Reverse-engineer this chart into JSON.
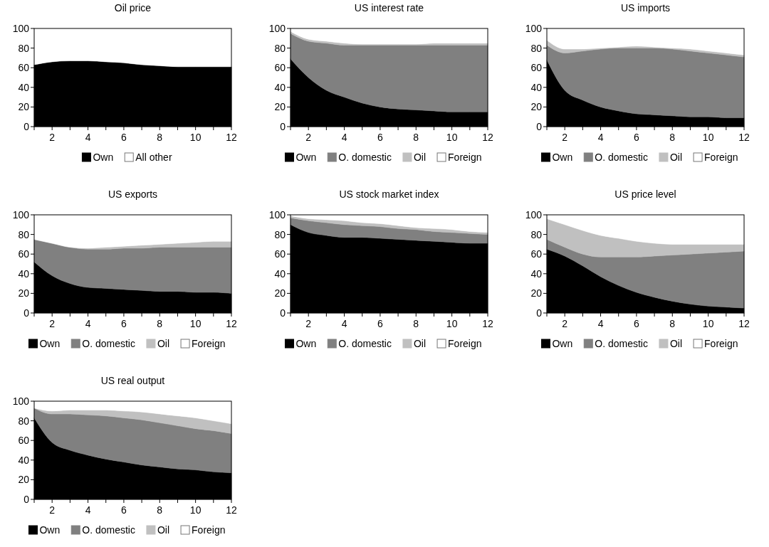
{
  "chart_data": [
    {
      "type": "area",
      "title": "Oil price",
      "stacked": true,
      "legend": "bottom",
      "grid": false,
      "x": [
        1,
        2,
        3,
        4,
        5,
        6,
        7,
        8,
        9,
        10,
        11,
        12
      ],
      "xlim": [
        1,
        12
      ],
      "ylim": [
        0,
        100
      ],
      "xticks": [
        {
          "value": 1,
          "label": null
        },
        2,
        {
          "value": 3,
          "label": null
        },
        4,
        {
          "value": 5,
          "label": null
        },
        6,
        {
          "value": 7,
          "label": null
        },
        8,
        {
          "value": 9,
          "label": null
        },
        10,
        {
          "value": 11,
          "label": null
        },
        12
      ],
      "yticks": [
        0,
        20,
        40,
        60,
        80,
        100
      ],
      "series": [
        {
          "name": "Own",
          "color": "#000000",
          "values": [
            63,
            66,
            67,
            67,
            66,
            65,
            63,
            62,
            61,
            61,
            61,
            61
          ]
        },
        {
          "name": "All other",
          "color": "#ffffff",
          "values": [
            37,
            34,
            33,
            33,
            34,
            35,
            37,
            38,
            39,
            39,
            39,
            39
          ]
        }
      ]
    },
    {
      "type": "area",
      "title": "US interest rate",
      "stacked": true,
      "legend": "bottom",
      "grid": false,
      "x": [
        1,
        2,
        3,
        4,
        5,
        6,
        7,
        8,
        9,
        10,
        11,
        12
      ],
      "xlim": [
        1,
        12
      ],
      "ylim": [
        0,
        100
      ],
      "xticks": [
        {
          "value": 1,
          "label": null
        },
        2,
        {
          "value": 3,
          "label": null
        },
        4,
        {
          "value": 5,
          "label": null
        },
        6,
        {
          "value": 7,
          "label": null
        },
        8,
        {
          "value": 9,
          "label": null
        },
        10,
        {
          "value": 11,
          "label": null
        },
        12
      ],
      "yticks": [
        0,
        20,
        40,
        60,
        80,
        100
      ],
      "series": [
        {
          "name": "Own",
          "color": "#000000",
          "values": [
            69,
            50,
            37,
            30,
            24,
            20,
            18,
            17,
            16,
            15,
            15,
            15
          ]
        },
        {
          "name": "O. domestic",
          "color": "#808080",
          "values": [
            26,
            37,
            48,
            53,
            59,
            63,
            65,
            66,
            67,
            68,
            68,
            68
          ]
        },
        {
          "name": "Oil",
          "color": "#c0c0c0",
          "values": [
            2,
            2,
            2,
            2,
            1,
            1,
            1,
            1,
            2,
            2,
            2,
            2
          ]
        },
        {
          "name": "Foreign",
          "color": "#ffffff",
          "values": [
            3,
            11,
            13,
            15,
            16,
            16,
            16,
            16,
            15,
            15,
            15,
            15
          ]
        }
      ]
    },
    {
      "type": "area",
      "title": "US imports",
      "stacked": true,
      "legend": "bottom",
      "grid": false,
      "x": [
        1,
        2,
        3,
        4,
        5,
        6,
        7,
        8,
        9,
        10,
        11,
        12
      ],
      "xlim": [
        1,
        12
      ],
      "ylim": [
        0,
        100
      ],
      "xticks": [
        {
          "value": 1,
          "label": null
        },
        2,
        {
          "value": 3,
          "label": null
        },
        4,
        {
          "value": 5,
          "label": null
        },
        6,
        {
          "value": 7,
          "label": null
        },
        8,
        {
          "value": 9,
          "label": null
        },
        10,
        {
          "value": 11,
          "label": null
        },
        12
      ],
      "yticks": [
        0,
        20,
        40,
        60,
        80,
        100
      ],
      "series": [
        {
          "name": "Own",
          "color": "#000000",
          "values": [
            68,
            37,
            27,
            20,
            16,
            13,
            12,
            11,
            10,
            10,
            9,
            9
          ]
        },
        {
          "name": "O. domestic",
          "color": "#808080",
          "values": [
            15,
            38,
            50,
            59,
            64,
            67,
            68,
            68,
            67,
            65,
            64,
            62
          ]
        },
        {
          "name": "Oil",
          "color": "#c0c0c0",
          "values": [
            5,
            4,
            2,
            1,
            1,
            2,
            1,
            1,
            2,
            2,
            2,
            2
          ]
        },
        {
          "name": "Foreign",
          "color": "#ffffff",
          "values": [
            12,
            21,
            21,
            20,
            19,
            18,
            19,
            20,
            21,
            23,
            25,
            27
          ]
        }
      ]
    },
    {
      "type": "area",
      "title": "US exports",
      "stacked": true,
      "legend": "bottom",
      "grid": false,
      "x": [
        1,
        2,
        3,
        4,
        5,
        6,
        7,
        8,
        9,
        10,
        11,
        12
      ],
      "xlim": [
        1,
        12
      ],
      "ylim": [
        0,
        100
      ],
      "xticks": [
        {
          "value": 1,
          "label": null
        },
        2,
        {
          "value": 3,
          "label": null
        },
        4,
        {
          "value": 5,
          "label": null
        },
        6,
        {
          "value": 7,
          "label": null
        },
        8,
        {
          "value": 9,
          "label": null
        },
        10,
        {
          "value": 11,
          "label": null
        },
        12
      ],
      "yticks": [
        0,
        20,
        40,
        60,
        80,
        100
      ],
      "series": [
        {
          "name": "Own",
          "color": "#000000",
          "values": [
            52,
            38,
            30,
            26,
            25,
            24,
            23,
            22,
            22,
            21,
            21,
            20
          ]
        },
        {
          "name": "O. domestic",
          "color": "#808080",
          "values": [
            23,
            33,
            37,
            39,
            40,
            42,
            43,
            45,
            45,
            46,
            46,
            47
          ]
        },
        {
          "name": "Oil",
          "color": "#c0c0c0",
          "values": [
            0,
            0,
            0,
            1,
            2,
            2,
            3,
            3,
            4,
            5,
            6,
            6
          ]
        },
        {
          "name": "Foreign",
          "color": "#ffffff",
          "values": [
            25,
            29,
            33,
            34,
            33,
            32,
            31,
            30,
            29,
            28,
            27,
            27
          ]
        }
      ]
    },
    {
      "type": "area",
      "title": "US stock market index",
      "stacked": true,
      "legend": "bottom",
      "grid": false,
      "x": [
        1,
        2,
        3,
        4,
        5,
        6,
        7,
        8,
        9,
        10,
        11,
        12
      ],
      "xlim": [
        1,
        12
      ],
      "ylim": [
        0,
        100
      ],
      "xticks": [
        {
          "value": 1,
          "label": null
        },
        2,
        {
          "value": 3,
          "label": null
        },
        4,
        {
          "value": 5,
          "label": null
        },
        6,
        {
          "value": 7,
          "label": null
        },
        8,
        {
          "value": 9,
          "label": null
        },
        10,
        {
          "value": 11,
          "label": null
        },
        12
      ],
      "yticks": [
        0,
        20,
        40,
        60,
        80,
        100
      ],
      "series": [
        {
          "name": "Own",
          "color": "#000000",
          "values": [
            90,
            82,
            79,
            77,
            77,
            76,
            75,
            74,
            73,
            72,
            71,
            71
          ]
        },
        {
          "name": "O. domestic",
          "color": "#808080",
          "values": [
            7,
            12,
            13,
            13,
            12,
            12,
            11,
            11,
            10,
            10,
            10,
            9
          ]
        },
        {
          "name": "Oil",
          "color": "#c0c0c0",
          "values": [
            2,
            2,
            3,
            4,
            3,
            3,
            3,
            2,
            3,
            3,
            2,
            2
          ]
        },
        {
          "name": "Foreign",
          "color": "#ffffff",
          "values": [
            1,
            4,
            5,
            6,
            8,
            9,
            11,
            13,
            14,
            15,
            17,
            18
          ]
        }
      ]
    },
    {
      "type": "area",
      "title": "US price level",
      "stacked": true,
      "legend": "bottom",
      "grid": false,
      "x": [
        1,
        2,
        3,
        4,
        5,
        6,
        7,
        8,
        9,
        10,
        11,
        12
      ],
      "xlim": [
        1,
        12
      ],
      "ylim": [
        0,
        100
      ],
      "xticks": [
        {
          "value": 1,
          "label": null
        },
        2,
        {
          "value": 3,
          "label": null
        },
        4,
        {
          "value": 5,
          "label": null
        },
        6,
        {
          "value": 7,
          "label": null
        },
        8,
        {
          "value": 9,
          "label": null
        },
        10,
        {
          "value": 11,
          "label": null
        },
        12
      ],
      "yticks": [
        0,
        20,
        40,
        60,
        80,
        100
      ],
      "series": [
        {
          "name": "Own",
          "color": "#000000",
          "values": [
            65,
            58,
            48,
            37,
            28,
            21,
            16,
            12,
            9,
            7,
            6,
            5
          ]
        },
        {
          "name": "O. domestic",
          "color": "#808080",
          "values": [
            10,
            9,
            12,
            20,
            29,
            36,
            42,
            47,
            51,
            54,
            56,
            58
          ]
        },
        {
          "name": "Oil",
          "color": "#c0c0c0",
          "values": [
            21,
            23,
            24,
            22,
            19,
            16,
            13,
            11,
            10,
            9,
            8,
            7
          ]
        },
        {
          "name": "Foreign",
          "color": "#ffffff",
          "values": [
            4,
            10,
            16,
            21,
            24,
            27,
            29,
            30,
            30,
            30,
            30,
            30
          ]
        }
      ]
    },
    {
      "type": "area",
      "title": "US real output",
      "stacked": true,
      "legend": "bottom",
      "grid": false,
      "x": [
        1,
        2,
        3,
        4,
        5,
        6,
        7,
        8,
        9,
        10,
        11,
        12
      ],
      "xlim": [
        1,
        12
      ],
      "ylim": [
        0,
        100
      ],
      "xticks": [
        {
          "value": 1,
          "label": null
        },
        2,
        {
          "value": 3,
          "label": null
        },
        4,
        {
          "value": 5,
          "label": null
        },
        6,
        {
          "value": 7,
          "label": null
        },
        8,
        {
          "value": 9,
          "label": null
        },
        10,
        {
          "value": 11,
          "label": null
        },
        12
      ],
      "yticks": [
        0,
        20,
        40,
        60,
        80,
        100
      ],
      "series": [
        {
          "name": "Own",
          "color": "#000000",
          "values": [
            83,
            58,
            50,
            45,
            41,
            38,
            35,
            33,
            31,
            30,
            28,
            27
          ]
        },
        {
          "name": "O. domestic",
          "color": "#808080",
          "values": [
            10,
            29,
            37,
            41,
            44,
            45,
            46,
            45,
            44,
            42,
            42,
            40
          ]
        },
        {
          "name": "Oil",
          "color": "#c0c0c0",
          "values": [
            0,
            3,
            4,
            5,
            6,
            7,
            8,
            9,
            10,
            11,
            10,
            10
          ]
        },
        {
          "name": "Foreign",
          "color": "#ffffff",
          "values": [
            7,
            10,
            9,
            9,
            9,
            10,
            11,
            13,
            15,
            17,
            20,
            23
          ]
        }
      ]
    }
  ]
}
